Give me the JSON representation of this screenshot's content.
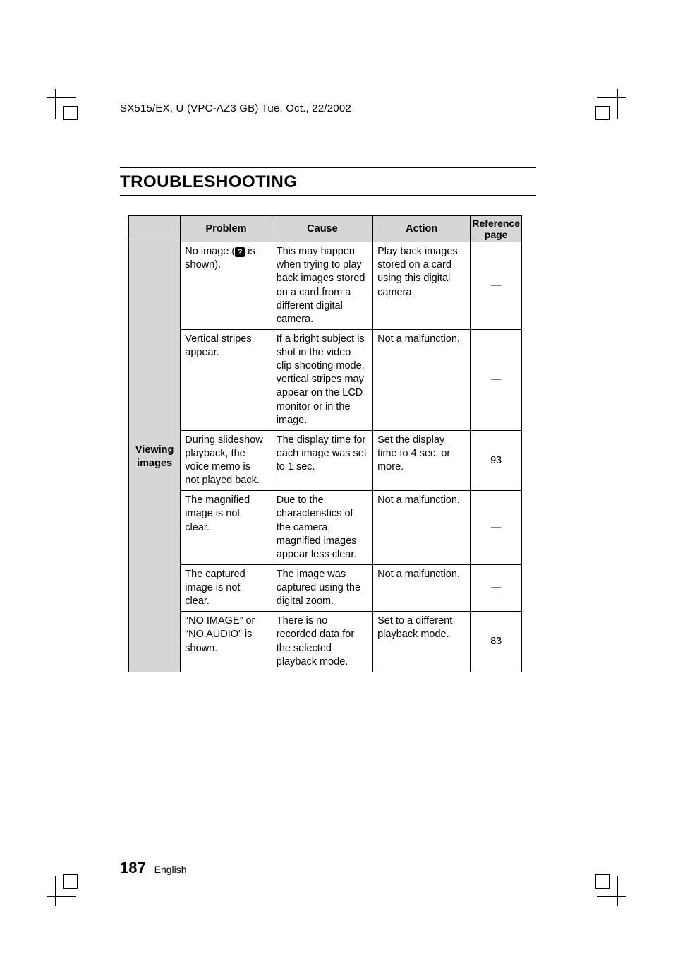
{
  "header": "SX515/EX, U (VPC-AZ3 GB)    Tue. Oct., 22/2002",
  "title": "TROUBLESHOOTING",
  "columns": {
    "problem": "Problem",
    "cause": "Cause",
    "action": "Action",
    "reference_ln1": "Reference",
    "reference_ln2": "page"
  },
  "section": "Viewing images",
  "rows": [
    {
      "problem_pre": "No image (",
      "problem_post": " is shown).",
      "icon_glyph": "?",
      "cause": "This may happen when trying to play back images stored on a card from a different digital camera.",
      "action": "Play back images stored on a card using this digital camera.",
      "ref": "—"
    },
    {
      "problem": "Vertical stripes appear.",
      "cause": "If a bright subject is shot in the video clip shooting mode, vertical stripes may appear on the LCD monitor or in the image.",
      "action": "Not a malfunction.",
      "ref": "—"
    },
    {
      "problem": "During slideshow playback, the voice memo is not played back.",
      "cause": "The display time for each image was set to 1 sec.",
      "action": "Set the display time to 4 sec. or more.",
      "ref": "93"
    },
    {
      "problem": "The magnified image is not clear.",
      "cause": "Due to the characteristics of the camera, magnified images appear less clear.",
      "action": "Not a malfunction.",
      "ref": "—"
    },
    {
      "problem": "The captured image is not clear.",
      "cause": "The image was captured using the digital zoom.",
      "action": "Not a malfunction.",
      "ref": "—"
    },
    {
      "problem": "“NO IMAGE” or “NO AUDIO” is shown.",
      "cause": "There is no recorded data for the selected playback mode.",
      "action": "Set to a different playback mode.",
      "ref": "83"
    }
  ],
  "footer": {
    "page": "187",
    "lang": "English"
  }
}
